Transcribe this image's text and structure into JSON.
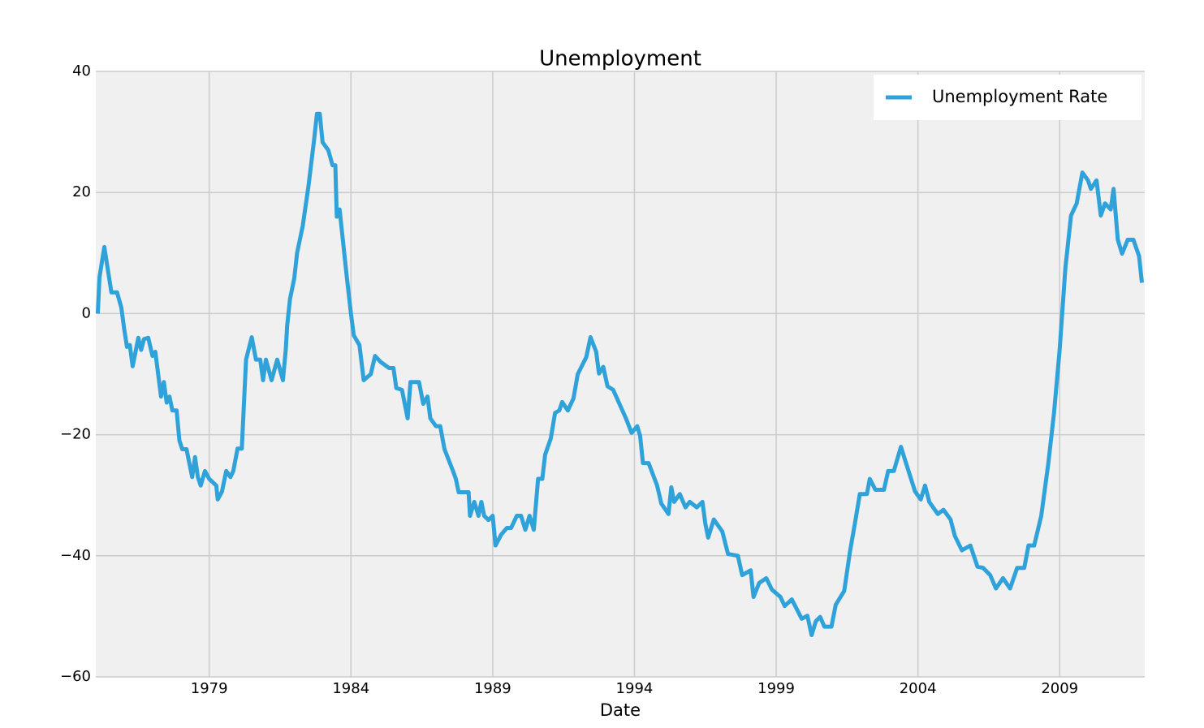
{
  "chart_data": {
    "type": "line",
    "title": "Unemployment",
    "x_label": "Date",
    "x": [
      1975.07,
      1975.13,
      1975.3,
      1975.55,
      1975.75,
      1975.9,
      1976.0,
      1976.1,
      1976.2,
      1976.3,
      1976.5,
      1976.6,
      1976.7,
      1976.85,
      1977.0,
      1977.1,
      1977.3,
      1977.4,
      1977.5,
      1977.6,
      1977.7,
      1977.85,
      1977.95,
      1978.05,
      1978.2,
      1978.4,
      1978.5,
      1978.6,
      1978.7,
      1978.85,
      1979.0,
      1979.25,
      1979.3,
      1979.45,
      1979.6,
      1979.75,
      1979.85,
      1980.0,
      1980.15,
      1980.3,
      1980.5,
      1980.65,
      1980.8,
      1980.9,
      1981.0,
      1981.2,
      1981.4,
      1981.6,
      1981.7,
      1981.75,
      1981.85,
      1982.0,
      1982.1,
      1982.3,
      1982.5,
      1982.7,
      1982.8,
      1982.9,
      1983.0,
      1983.2,
      1983.35,
      1983.45,
      1983.5,
      1983.6,
      1983.85,
      1984.0,
      1984.1,
      1984.3,
      1984.45,
      1984.7,
      1984.85,
      1985.05,
      1985.35,
      1985.5,
      1985.6,
      1985.8,
      1986.0,
      1986.1,
      1986.4,
      1986.55,
      1986.7,
      1986.8,
      1987.0,
      1987.15,
      1987.3,
      1987.6,
      1987.7,
      1987.8,
      1988.15,
      1988.2,
      1988.35,
      1988.5,
      1988.6,
      1988.7,
      1988.85,
      1989.0,
      1989.1,
      1989.3,
      1989.5,
      1989.65,
      1989.85,
      1990.0,
      1990.15,
      1990.3,
      1990.45,
      1990.6,
      1990.75,
      1990.85,
      1991.05,
      1991.2,
      1991.35,
      1991.45,
      1991.65,
      1991.85,
      1992.0,
      1992.15,
      1992.3,
      1992.45,
      1992.65,
      1992.75,
      1992.9,
      1993.05,
      1993.25,
      1993.7,
      1993.9,
      1994.1,
      1994.2,
      1994.3,
      1994.5,
      1994.8,
      1994.95,
      1995.2,
      1995.3,
      1995.4,
      1995.6,
      1995.8,
      1995.95,
      1996.2,
      1996.4,
      1996.5,
      1996.6,
      1996.8,
      1997.1,
      1997.3,
      1997.65,
      1997.8,
      1998.1,
      1998.2,
      1998.4,
      1998.65,
      1998.85,
      1999.15,
      1999.3,
      1999.55,
      1999.9,
      2000.1,
      2000.25,
      2000.4,
      2000.55,
      2000.7,
      2000.95,
      2001.1,
      2001.4,
      2001.6,
      2001.8,
      2001.95,
      2002.2,
      2002.3,
      2002.5,
      2002.8,
      2002.95,
      2003.15,
      2003.4,
      2003.6,
      2003.9,
      2004.1,
      2004.25,
      2004.4,
      2004.7,
      2004.9,
      2005.15,
      2005.3,
      2005.55,
      2005.85,
      2006.1,
      2006.3,
      2006.55,
      2006.75,
      2007.0,
      2007.25,
      2007.5,
      2007.75,
      2007.9,
      2008.1,
      2008.35,
      2008.6,
      2008.8,
      2009.0,
      2009.2,
      2009.4,
      2009.6,
      2009.8,
      2010.0,
      2010.1,
      2010.3,
      2010.45,
      2010.6,
      2010.8,
      2010.9,
      2011.05,
      2011.2,
      2011.4,
      2011.6,
      2011.8,
      2011.9
    ],
    "series": [
      {
        "name": "Unemployment Rate",
        "color": "#30a2da",
        "values": [
          0,
          6,
          11,
          3.5,
          3.5,
          1,
          -2.5,
          -5.5,
          -5.2,
          -8.7,
          -4,
          -6,
          -4.2,
          -4,
          -7,
          -6.3,
          -13.7,
          -11.3,
          -14.7,
          -13.7,
          -16,
          -16,
          -21,
          -22.4,
          -22.4,
          -27,
          -23.7,
          -27,
          -28.4,
          -26,
          -27.3,
          -28.4,
          -30.7,
          -29.4,
          -26,
          -27,
          -26,
          -22.3,
          -22.3,
          -7.6,
          -3.9,
          -7.6,
          -7.6,
          -11,
          -7.6,
          -11,
          -7.6,
          -11,
          -6,
          -2,
          2.4,
          5.8,
          10,
          14.5,
          21,
          28.7,
          33,
          33,
          28.3,
          27,
          24.5,
          24.5,
          16,
          17.2,
          6.2,
          0,
          -3.6,
          -5.2,
          -11,
          -10,
          -7,
          -8,
          -9,
          -9,
          -12.3,
          -12.6,
          -17.3,
          -11.3,
          -11.3,
          -14.9,
          -13.7,
          -17.3,
          -18.6,
          -18.6,
          -22.4,
          -26,
          -27.3,
          -29.5,
          -29.5,
          -33.4,
          -31.1,
          -33.4,
          -31.1,
          -33.4,
          -34.1,
          -33.4,
          -38.3,
          -36.5,
          -35.4,
          -35.4,
          -33.4,
          -33.4,
          -35.7,
          -33.4,
          -35.7,
          -27.3,
          -27.3,
          -23.3,
          -20.6,
          -16.4,
          -16,
          -14.6,
          -16,
          -14,
          -10,
          -8.6,
          -7.2,
          -3.9,
          -6.3,
          -9.9,
          -8.8,
          -12,
          -12.6,
          -17.3,
          -19.7,
          -18.6,
          -20.2,
          -24.7,
          -24.7,
          -28.4,
          -31.4,
          -33.1,
          -28.7,
          -31.1,
          -29.8,
          -32,
          -31.1,
          -32,
          -31.1,
          -34.7,
          -37,
          -34,
          -36,
          -39.7,
          -40,
          -43.2,
          -42.4,
          -46.8,
          -44.5,
          -43.7,
          -45.6,
          -46.8,
          -48.3,
          -47.2,
          -50.4,
          -49.9,
          -53.1,
          -50.8,
          -50.1,
          -51.7,
          -51.7,
          -48.1,
          -45.8,
          -39.4,
          -34,
          -29.8,
          -29.8,
          -27.3,
          -29.1,
          -29.1,
          -26,
          -26,
          -22,
          -25,
          -29.4,
          -30.7,
          -28.4,
          -31.1,
          -33.1,
          -32.4,
          -34,
          -36.7,
          -39.1,
          -38.3,
          -41.8,
          -42,
          -43.2,
          -45.4,
          -43.7,
          -45.4,
          -42,
          -42,
          -38.3,
          -38.3,
          -33.4,
          -24.7,
          -16.4,
          -5.9,
          7.5,
          16.2,
          18.2,
          23.3,
          22,
          20.6,
          22,
          16.2,
          18.2,
          17.2,
          20.6,
          12.2,
          9.9,
          12.2,
          12.2,
          9.5,
          5.1
        ]
      }
    ],
    "xlim": [
      1975,
      2012
    ],
    "xticks": [
      1979,
      1984,
      1989,
      1994,
      1999,
      2004,
      2009
    ],
    "ylim": [
      -60,
      40
    ],
    "yticks": [
      {
        "value": -60,
        "label": "−60"
      },
      {
        "value": -40,
        "label": "−40"
      },
      {
        "value": -20,
        "label": "−20"
      },
      0,
      20,
      40
    ],
    "grid": true,
    "legend": "upper right"
  }
}
